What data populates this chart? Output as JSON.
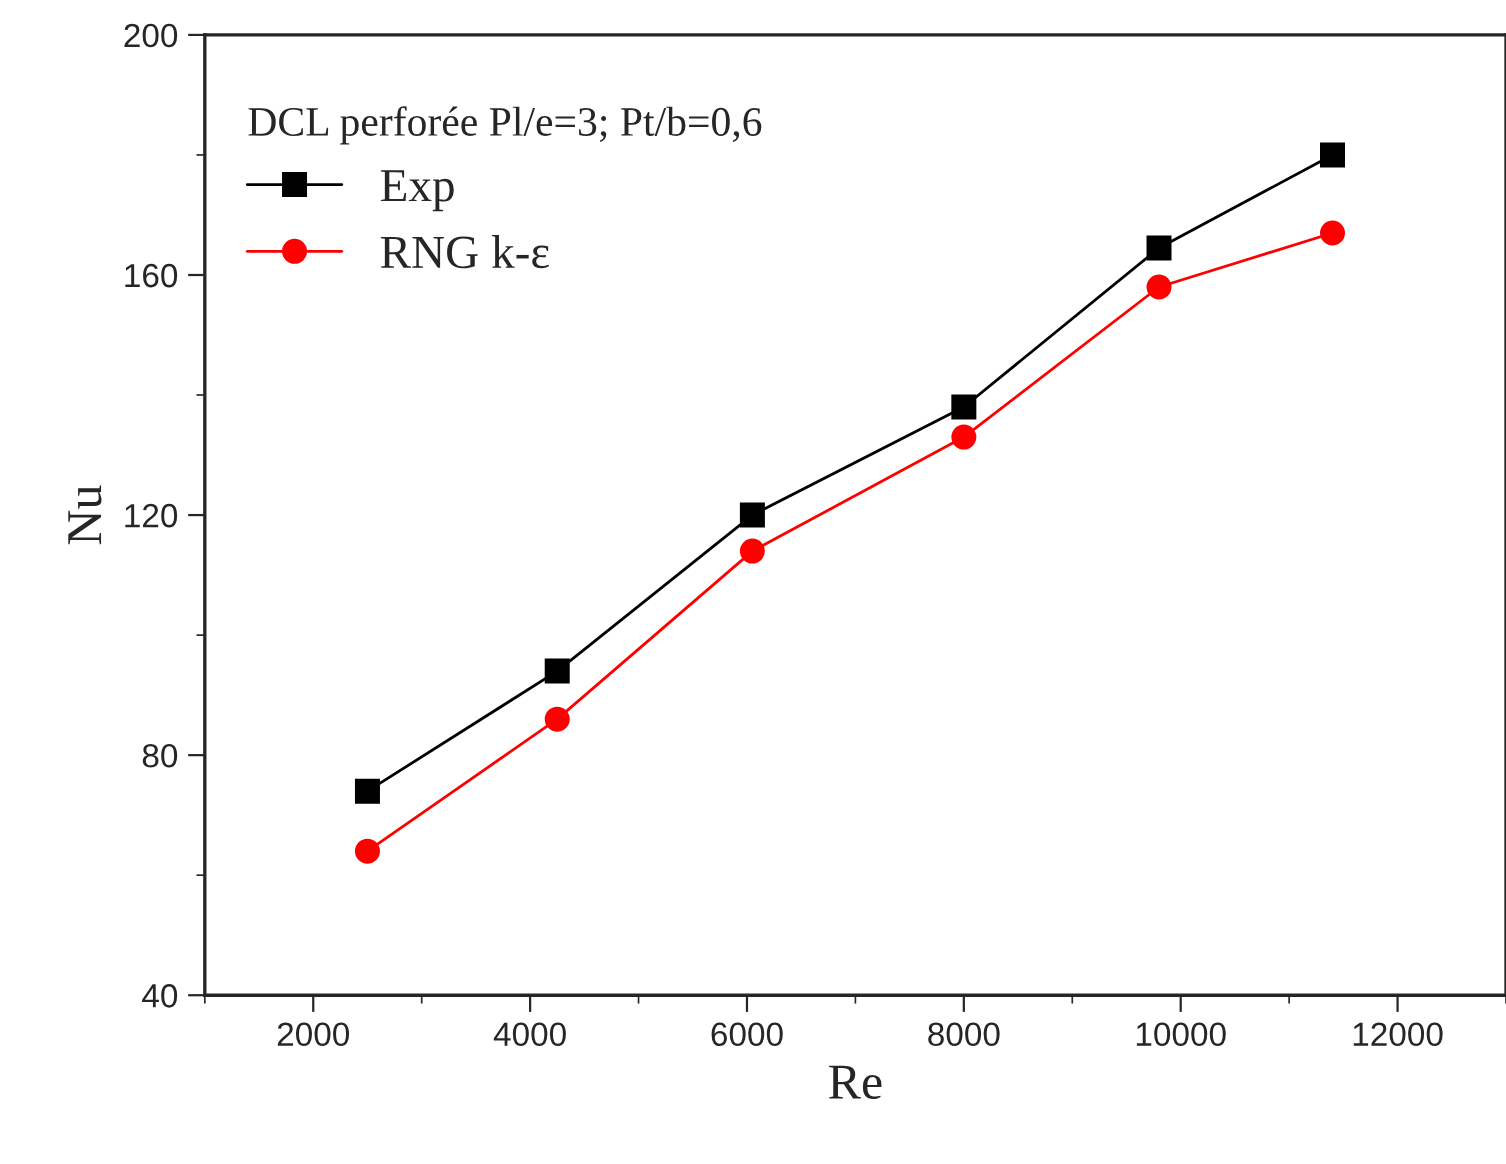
{
  "chart_data": {
    "type": "line",
    "xlabel": "Re",
    "ylabel": "Nu",
    "legend_title": "DCL perforée Pl/e=3; Pt/b=0,6",
    "x": [
      2500,
      4250,
      6050,
      8000,
      9800,
      11400
    ],
    "series": [
      {
        "name": "Exp",
        "color": "#000000",
        "marker": "square",
        "values": [
          74,
          94,
          120,
          138,
          164.5,
          180
        ]
      },
      {
        "name": "RNG k-ε",
        "color": "#ff0000",
        "marker": "circle",
        "values": [
          64,
          86,
          114,
          133,
          158,
          167
        ]
      }
    ],
    "xlim": [
      1000,
      13000
    ],
    "xticks": [
      2000,
      4000,
      6000,
      8000,
      10000,
      12000
    ],
    "ylim": [
      40,
      200
    ],
    "yticks": [
      40,
      80,
      120,
      160,
      200
    ],
    "grid": false,
    "legend": "top left",
    "line_style": "solid"
  }
}
